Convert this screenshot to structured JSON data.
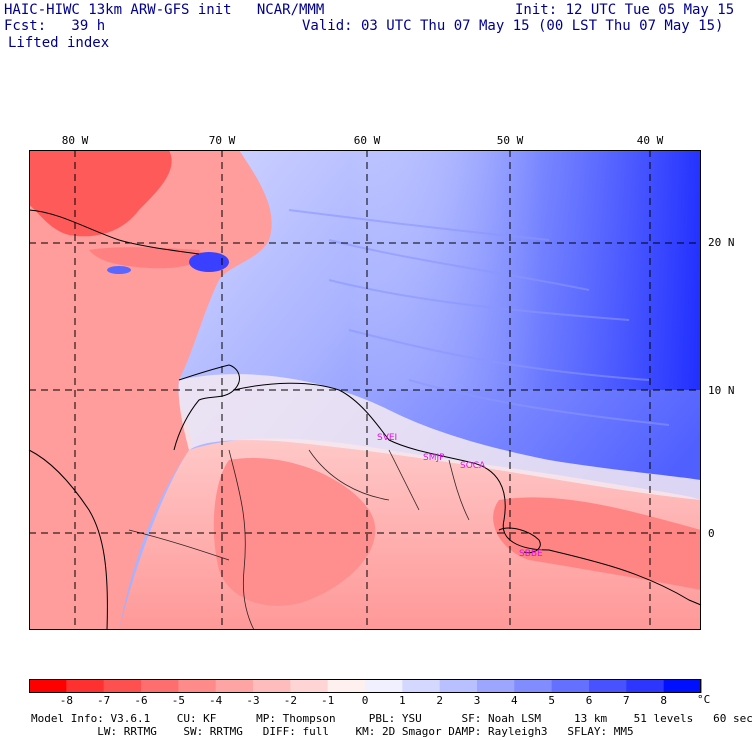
{
  "header": {
    "line1_left": "HAIC-HIWC 13km ARW-GFS init   NCAR/MMM",
    "line1_right": "Init: 12 UTC Tue 05 May 15",
    "line2_left": "Fcst:   39 h",
    "line2_right": "Valid: 03 UTC Thu 07 May 15 (00 LST Thu 07 May 15)",
    "field_name": "Lifted index"
  },
  "map": {
    "lon_labels": [
      "80 W",
      "70 W",
      "60 W",
      "50 W",
      "40 W"
    ],
    "lat_labels": [
      "20 N",
      "10 N",
      "0"
    ],
    "station_labels": [
      "SVEI",
      "SMJP",
      "SOCA",
      "SBBE"
    ],
    "label_color": "#e010e0",
    "grid_color": "#000000"
  },
  "colorbar": {
    "ticks": [
      "-8",
      "-7",
      "-6",
      "-5",
      "-4",
      "-3",
      "-2",
      "-1",
      "0",
      "1",
      "2",
      "3",
      "4",
      "5",
      "6",
      "7",
      "8"
    ],
    "unit": "°C",
    "colors": [
      "#ff0000",
      "#ff3030",
      "#ff5050",
      "#ff6e6e",
      "#ff8a8a",
      "#ffa4a4",
      "#ffbcbc",
      "#ffd4d4",
      "#fff0f0",
      "#f0f0ff",
      "#d4d8ff",
      "#b8c0ff",
      "#9ca6ff",
      "#808cff",
      "#6470ff",
      "#4852ff",
      "#2c36ff",
      "#0010ff"
    ]
  },
  "footer": {
    "line1": "Model Info: V3.6.1    CU: KF      MP: Thompson     PBL: YSU      SF: Noah LSM     13 km    51 levels   60 sec",
    "line2": "          LW: RRTMG    SW: RRTMG   DIFF: full    KM: 2D Smagor DAMP: Rayleigh3   SFLAY: MM5"
  }
}
